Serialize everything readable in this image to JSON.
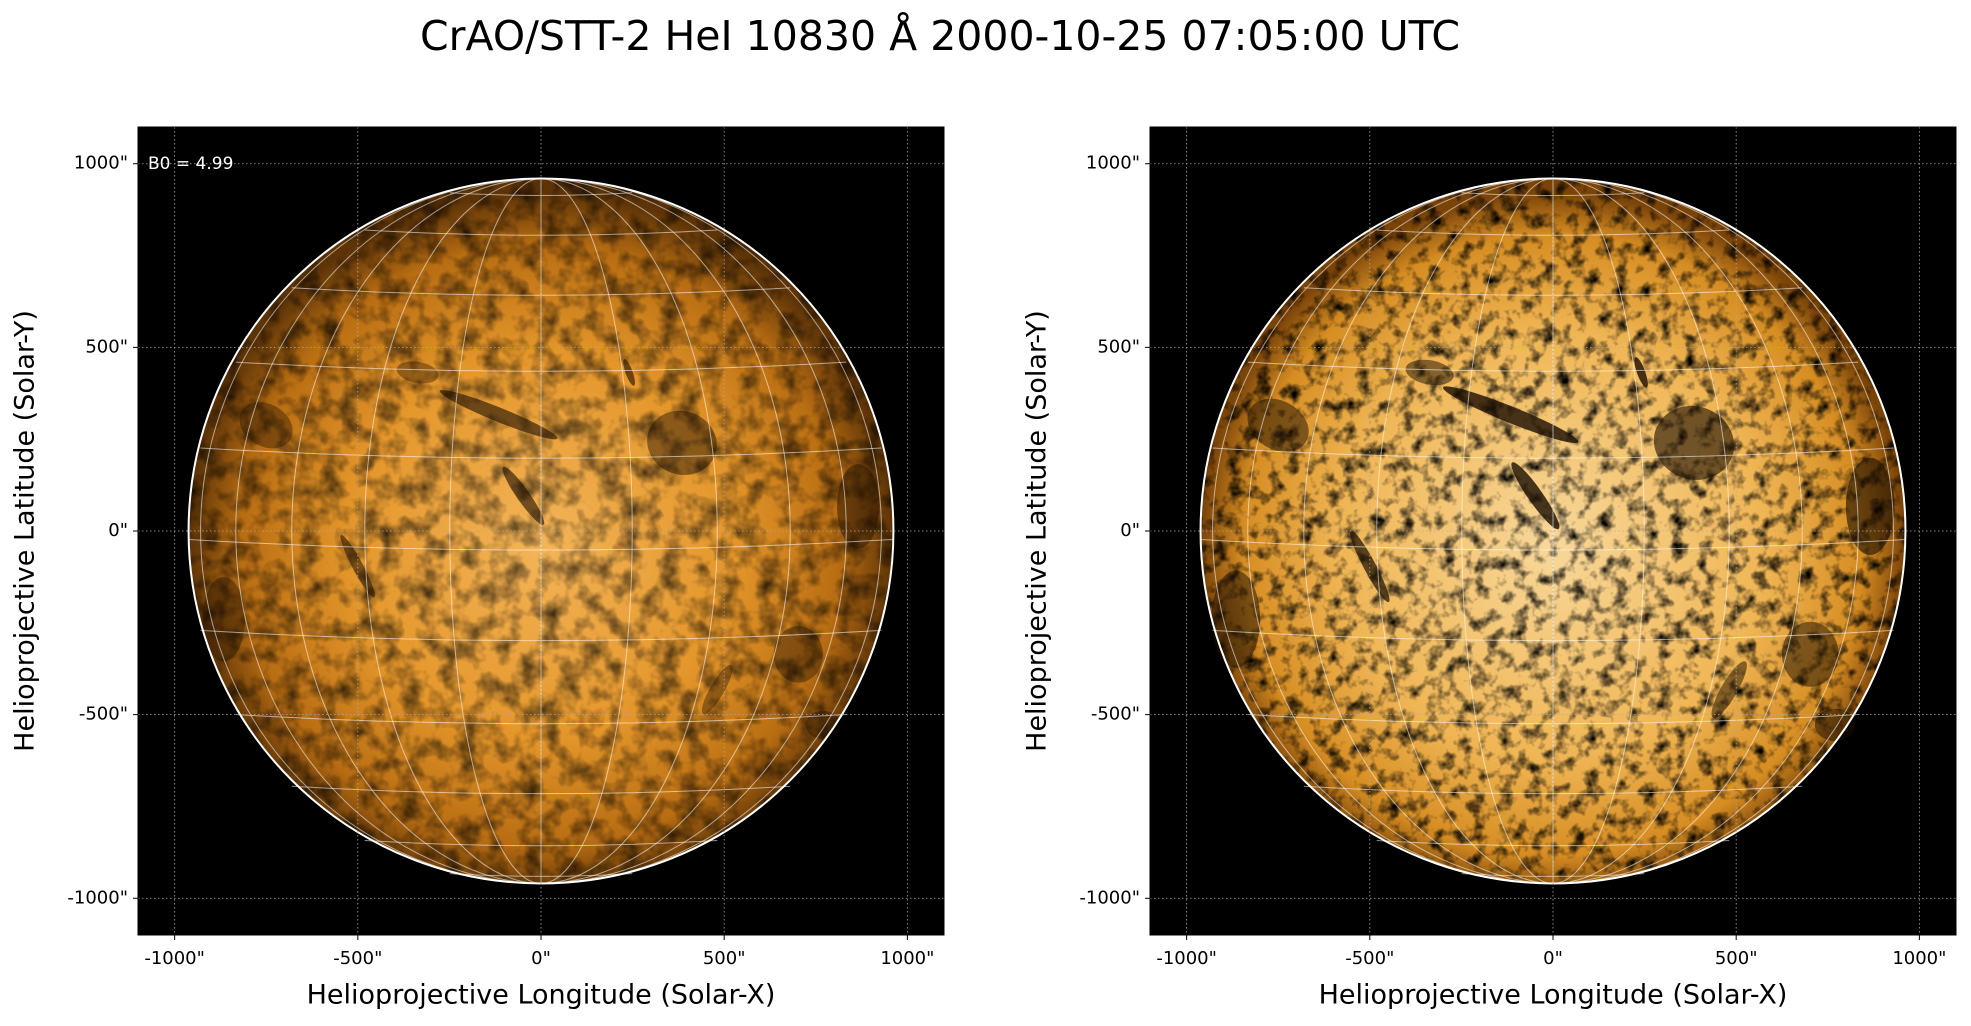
{
  "title": "CrAO/STT-2 HeI 10830 Å 2000-10-25 07:05:00 UTC",
  "chart_data": [
    {
      "type": "image",
      "xlabel": "Helioprojective Longitude (Solar-X)",
      "ylabel": "Helioprojective Latitude (Solar-Y)",
      "annotation": "B0 = 4.99",
      "xlim": [
        -1100,
        1100
      ],
      "ylim": [
        -1100,
        1100
      ],
      "xticks": [
        {
          "value": -1000,
          "label": "-1000\""
        },
        {
          "value": -500,
          "label": "-500\""
        },
        {
          "value": 0,
          "label": "0\""
        },
        {
          "value": 500,
          "label": "500\""
        },
        {
          "value": 1000,
          "label": "1000\""
        }
      ],
      "yticks": [
        {
          "value": -1000,
          "label": "-1000\""
        },
        {
          "value": -500,
          "label": "-500\""
        },
        {
          "value": 0,
          "label": "0\""
        },
        {
          "value": 500,
          "label": "500\""
        },
        {
          "value": 1000,
          "label": "1000\""
        }
      ],
      "grid": true
    },
    {
      "type": "image",
      "xlabel": "Helioprojective Longitude (Solar-X)",
      "ylabel": "Helioprojective Latitude (Solar-Y)",
      "xlim": [
        -1100,
        1100
      ],
      "ylim": [
        -1100,
        1100
      ],
      "xticks": [
        {
          "value": -1000,
          "label": "-1000\""
        },
        {
          "value": -500,
          "label": "-500\""
        },
        {
          "value": 0,
          "label": "0\""
        },
        {
          "value": 500,
          "label": "500\""
        },
        {
          "value": 1000,
          "label": "1000\""
        }
      ],
      "yticks": [
        {
          "value": -1000,
          "label": "-1000\""
        },
        {
          "value": -500,
          "label": "-500\""
        },
        {
          "value": 0,
          "label": "0\""
        },
        {
          "value": 500,
          "label": "500\""
        },
        {
          "value": 1000,
          "label": "1000\""
        }
      ],
      "grid": true
    }
  ]
}
